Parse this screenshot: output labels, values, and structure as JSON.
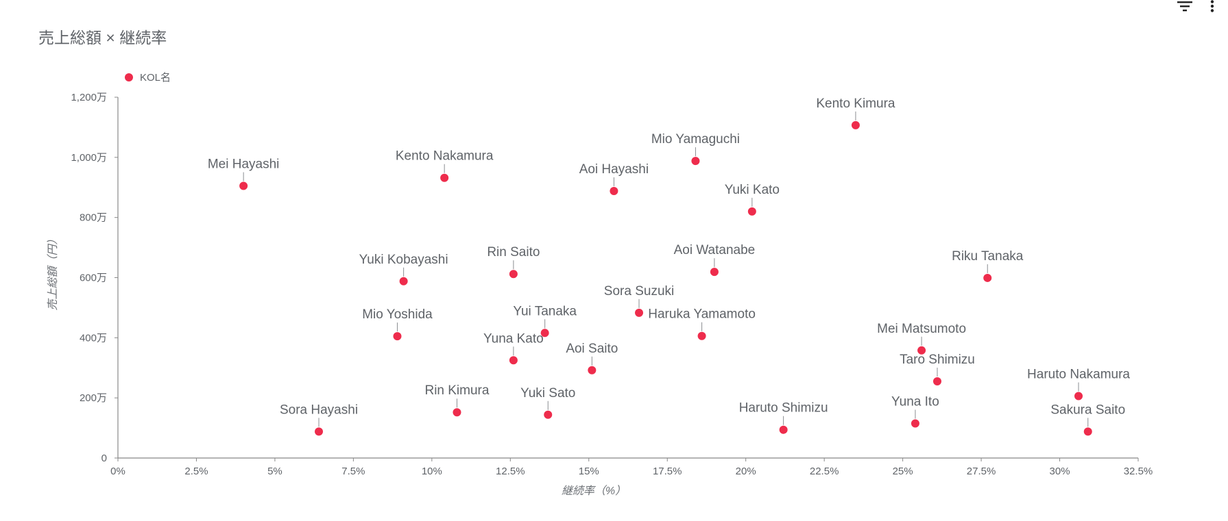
{
  "title": "売上総額 × 継続率",
  "toolbar": {
    "filter_icon": "filter-icon",
    "more_icon": "more-vert-icon"
  },
  "colors": {
    "marker": "#ee2c4c",
    "axis": "#888888",
    "text": "#5f6368"
  },
  "chart_data": {
    "type": "scatter",
    "title": "売上総額 × 継続率",
    "xlabel": "継続率（%）",
    "ylabel": "売上総額（円）",
    "xlim": [
      0,
      32.5
    ],
    "ylim": [
      0,
      12000000
    ],
    "xticks": [
      {
        "value": 0,
        "label": "0%"
      },
      {
        "value": 2.5,
        "label": "2.5%"
      },
      {
        "value": 5,
        "label": "5%"
      },
      {
        "value": 7.5,
        "label": "7.5%"
      },
      {
        "value": 10,
        "label": "10%"
      },
      {
        "value": 12.5,
        "label": "12.5%"
      },
      {
        "value": 15,
        "label": "15%"
      },
      {
        "value": 17.5,
        "label": "17.5%"
      },
      {
        "value": 20,
        "label": "20%"
      },
      {
        "value": 22.5,
        "label": "22.5%"
      },
      {
        "value": 25,
        "label": "25%"
      },
      {
        "value": 27.5,
        "label": "27.5%"
      },
      {
        "value": 30,
        "label": "30%"
      },
      {
        "value": 32.5,
        "label": "32.5%"
      }
    ],
    "yticks": [
      {
        "value": 0,
        "label": "0"
      },
      {
        "value": 2000000,
        "label": "200万"
      },
      {
        "value": 4000000,
        "label": "400万"
      },
      {
        "value": 6000000,
        "label": "600万"
      },
      {
        "value": 8000000,
        "label": "800万"
      },
      {
        "value": 10000000,
        "label": "1,000万"
      },
      {
        "value": 12000000,
        "label": "1,200万"
      }
    ],
    "grid": false,
    "legend": "top-left",
    "series": [
      {
        "name": "KOL名",
        "points": [
          {
            "label": "Mei Hayashi",
            "x": 4.0,
            "y": 9050000
          },
          {
            "label": "Sora Hayashi",
            "x": 6.4,
            "y": 880000
          },
          {
            "label": "Yuki Kobayashi",
            "x": 9.1,
            "y": 5880000
          },
          {
            "label": "Mio Yoshida",
            "x": 8.9,
            "y": 4050000
          },
          {
            "label": "Kento Nakamura",
            "x": 10.4,
            "y": 9320000
          },
          {
            "label": "Rin Kimura",
            "x": 10.8,
            "y": 1520000
          },
          {
            "label": "Rin Saito",
            "x": 12.6,
            "y": 6120000
          },
          {
            "label": "Yuna Kato",
            "x": 12.6,
            "y": 3250000
          },
          {
            "label": "Yui Tanaka",
            "x": 13.6,
            "y": 4160000
          },
          {
            "label": "Yuki Sato",
            "x": 13.7,
            "y": 1440000
          },
          {
            "label": "Aoi Saito",
            "x": 15.1,
            "y": 2920000
          },
          {
            "label": "Aoi Hayashi",
            "x": 15.8,
            "y": 8880000
          },
          {
            "label": "Sora Suzuki",
            "x": 16.6,
            "y": 4830000
          },
          {
            "label": "Mio Yamaguchi",
            "x": 18.4,
            "y": 9880000
          },
          {
            "label": "Haruka Yamamoto",
            "x": 18.6,
            "y": 4060000
          },
          {
            "label": "Aoi Watanabe",
            "x": 19.0,
            "y": 6190000
          },
          {
            "label": "Yuki Kato",
            "x": 20.2,
            "y": 8200000
          },
          {
            "label": "Haruto Shimizu",
            "x": 21.2,
            "y": 940000
          },
          {
            "label": "Kento Kimura",
            "x": 23.5,
            "y": 11070000
          },
          {
            "label": "Yuna Ito",
            "x": 25.4,
            "y": 1150000
          },
          {
            "label": "Mei Matsumoto",
            "x": 25.6,
            "y": 3580000
          },
          {
            "label": "Taro Shimizu",
            "x": 26.1,
            "y": 2550000
          },
          {
            "label": "Riku Tanaka",
            "x": 27.7,
            "y": 5990000
          },
          {
            "label": "Haruto Nakamura",
            "x": 30.6,
            "y": 2060000
          },
          {
            "label": "Sakura Saito",
            "x": 30.9,
            "y": 880000
          }
        ]
      }
    ]
  }
}
